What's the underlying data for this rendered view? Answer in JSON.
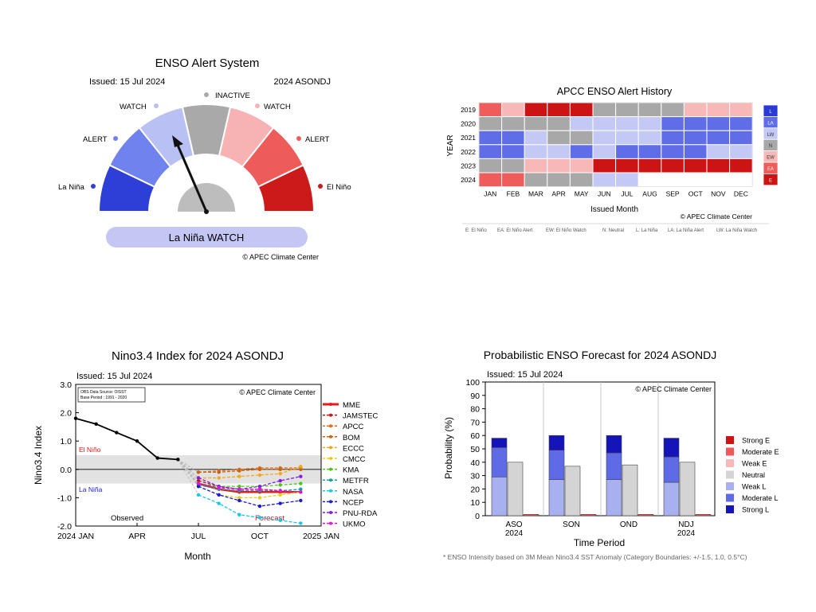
{
  "panel1": {
    "title": "ENSO Alert System",
    "issued": "Issued: 15 Jul 2024",
    "season": "2024 ASONDJ",
    "labels": {
      "inactive": "INACTIVE",
      "watch_l": "WATCH",
      "watch_r": "WATCH",
      "alert_l": "ALERT",
      "alert_r": "ALERT",
      "lanina": "La Niña",
      "elnino": "El Niño"
    },
    "status": "La Niña WATCH",
    "credit": "© APEC Climate Center",
    "colors": {
      "lanina": "#2e3fd8",
      "alert_l": "#6f82ee",
      "watch_l": "#b9c0f3",
      "inactive": "#a9a9a9",
      "watch_r": "#f7b3b3",
      "alert_r": "#ee5b5b",
      "elnino": "#cc1a1a",
      "status_bg": "#c4c6f4"
    }
  },
  "panel2": {
    "title": "APCC ENSO Alert History",
    "ylabel": "YEAR",
    "xlabel": "Issued Month",
    "credit": "© APEC Climate Center",
    "months": [
      "JAN",
      "FEB",
      "MAR",
      "APR",
      "MAY",
      "JUN",
      "JUL",
      "AUG",
      "SEP",
      "OCT",
      "NOV",
      "DEC"
    ],
    "years": [
      "2019",
      "2020",
      "2021",
      "2022",
      "2023",
      "2024"
    ],
    "grid": [
      [
        "EA",
        "EW",
        "E",
        "E",
        "E",
        "N",
        "N",
        "N",
        "N",
        "EW",
        "EW",
        "EW"
      ],
      [
        "N",
        "N",
        "N",
        "N",
        "LW",
        "LW",
        "LW",
        "LW",
        "LA",
        "LA",
        "LA",
        "LA"
      ],
      [
        "LA",
        "LA",
        "LW",
        "N",
        "N",
        "LW",
        "LW",
        "LW",
        "LA",
        "LA",
        "LA",
        "LA"
      ],
      [
        "LA",
        "LA",
        "LW",
        "LW",
        "LA",
        "LW",
        "LA",
        "LA",
        "LA",
        "LA",
        "LW",
        "LW"
      ],
      [
        "N",
        "N",
        "EW",
        "EW",
        "EW",
        "E",
        "E",
        "E",
        "E",
        "E",
        "E",
        "E"
      ],
      [
        "EA",
        "EA",
        "N",
        "N",
        "N",
        "LW",
        "LW",
        "",
        "",
        "",
        "",
        ""
      ]
    ],
    "legend": [
      "L",
      "LA",
      "LW",
      "N",
      "EW",
      "EA",
      "E"
    ],
    "colors": {
      "L": "#2a3ad6",
      "LA": "#5f6ee8",
      "LW": "#c3c8f5",
      "N": "#a8a8a8",
      "EW": "#f7b8b8",
      "EA": "#ef5c5c",
      "E": "#cc1414"
    },
    "key": [
      "E: El Niño",
      "EA: El Niño Alert",
      "EW: El Niño Watch",
      "N: Neutral",
      "L: La Niña",
      "LA: La Niña Alert",
      "LW: La Niña Watch"
    ]
  },
  "panel3": {
    "title": "Nino3.4 Index for 2024 ASONDJ",
    "issued": "Issued: 15 Jul 2024",
    "ylabel": "Nino3.4 Index",
    "xlabel": "Month",
    "credit": "© APEC Climate Center",
    "info_line1": "OBS Data Source: OISST",
    "info_line2": "Base Period : 1991 - 2020",
    "elnino_label": "El Niño",
    "lanina_label": "La Niña",
    "observed_label": "Observed",
    "forecast_label": "Forecast"
  },
  "panel4": {
    "title": "Probabilistic ENSO Forecast for 2024 ASONDJ",
    "issued": "Issued: 15 Jul 2024",
    "ylabel": "Probability (%)",
    "xlabel": "Time Period",
    "credit": "© APEC Climate Center",
    "legend": [
      {
        "name": "Strong E",
        "color": "#cc1414"
      },
      {
        "name": "Moderate E",
        "color": "#ee5a5a"
      },
      {
        "name": "Weak E",
        "color": "#f7b8b8"
      },
      {
        "name": "Neutral",
        "color": "#d4d4d4"
      },
      {
        "name": "Weak L",
        "color": "#a9b0f0"
      },
      {
        "name": "Moderate L",
        "color": "#5f6be6"
      },
      {
        "name": "Strong L",
        "color": "#1414b8"
      }
    ],
    "footnote": "* ENSO Intensity based on 3M Mean Nino3.4 SST Anomaly (Category Boundaries: +/-1.5, 1.0, 0.5°C)"
  },
  "chart_data": [
    {
      "type": "line",
      "title": "Nino3.4 Index for 2024 ASONDJ",
      "xlabel": "Month",
      "ylabel": "Nino3.4 Index",
      "ylim": [
        -2.0,
        3.0
      ],
      "x_ticks": [
        "2024 JAN",
        "APR",
        "JUL",
        "OCT",
        "2025 JAN"
      ],
      "y_ticks": [
        "3.0",
        "2.0",
        "1.0",
        "0.0",
        "-1.0",
        "-2.0"
      ],
      "observed": {
        "name": "Observed",
        "x": [
          1,
          2,
          3,
          4,
          5,
          6
        ],
        "y": [
          1.8,
          1.6,
          1.3,
          1.0,
          0.4,
          0.35
        ]
      },
      "series": [
        {
          "name": "MME",
          "color": "#e81a1a",
          "values": [
            -0.5,
            -0.7,
            -0.8,
            -0.8,
            -0.8,
            -0.8
          ]
        },
        {
          "name": "JAMSTEC",
          "color": "#c21616",
          "values": [
            -0.4,
            -0.6,
            -0.7,
            -0.7,
            -0.75,
            -0.8
          ]
        },
        {
          "name": "APCC",
          "color": "#e06a1a",
          "values": [
            -0.1,
            -0.05,
            0.0,
            0.05,
            0.05,
            0.05
          ]
        },
        {
          "name": "BOM",
          "color": "#c8640f",
          "values": [
            -0.1,
            -0.1,
            -0.05,
            0.0,
            0.0,
            0.0
          ]
        },
        {
          "name": "ECCC",
          "color": "#f2a81a",
          "values": [
            -0.3,
            -0.3,
            -0.25,
            -0.2,
            -0.15,
            0.1
          ]
        },
        {
          "name": "CMCC",
          "color": "#e6cf1a",
          "values": [
            -0.6,
            -0.9,
            -1.0,
            -1.0,
            -0.9,
            -0.8
          ]
        },
        {
          "name": "KMA",
          "color": "#4cc21a",
          "values": [
            -0.5,
            -0.6,
            -0.6,
            -0.6,
            -0.55,
            -0.5
          ]
        },
        {
          "name": "METFR",
          "color": "#16a0a0",
          "values": [
            -0.55,
            -0.7,
            -0.75,
            -0.75,
            -0.75,
            -0.7
          ]
        },
        {
          "name": "NASA",
          "color": "#18c8e6",
          "values": [
            -0.9,
            -1.2,
            -1.6,
            -1.7,
            -1.8,
            -1.9
          ]
        },
        {
          "name": "NCEP",
          "color": "#1a1ad6",
          "values": [
            -0.6,
            -0.9,
            -1.1,
            -1.3,
            -1.2,
            -1.1
          ]
        },
        {
          "name": "PNU-RDA",
          "color": "#8a1ae0",
          "values": [
            -0.3,
            -0.6,
            -0.7,
            -0.6,
            -0.4,
            -0.25
          ]
        },
        {
          "name": "UKMO",
          "color": "#d61ad6",
          "values": [
            -0.5,
            -0.65,
            -0.7,
            -0.7,
            -0.75,
            -0.8
          ]
        }
      ],
      "forecast_x": [
        7,
        8,
        9,
        10,
        11,
        12
      ],
      "annotations": [
        "El Niño",
        "La Niña",
        "Observed",
        "Forecast"
      ]
    },
    {
      "type": "bar",
      "title": "Probabilistic ENSO Forecast for 2024 ASONDJ",
      "xlabel": "Time Period",
      "ylabel": "Probability (%)",
      "ylim": [
        0,
        100
      ],
      "y_ticks": [
        "0",
        "10",
        "20",
        "30",
        "40",
        "50",
        "60",
        "70",
        "80",
        "90",
        "100"
      ],
      "categories": [
        [
          "ASO",
          "2024"
        ],
        [
          "SON",
          ""
        ],
        [
          "OND",
          ""
        ],
        [
          "NDJ",
          "2024"
        ]
      ],
      "la_nina_stack": [
        {
          "weak": 29,
          "moderate": 22,
          "strong": 7
        },
        {
          "weak": 27,
          "moderate": 22,
          "strong": 11
        },
        {
          "weak": 27,
          "moderate": 20,
          "strong": 13
        },
        {
          "weak": 25,
          "moderate": 19,
          "strong": 14
        }
      ],
      "neutral": [
        40,
        37,
        38,
        40
      ],
      "el_nino": [
        1,
        1,
        1,
        1
      ]
    }
  ]
}
